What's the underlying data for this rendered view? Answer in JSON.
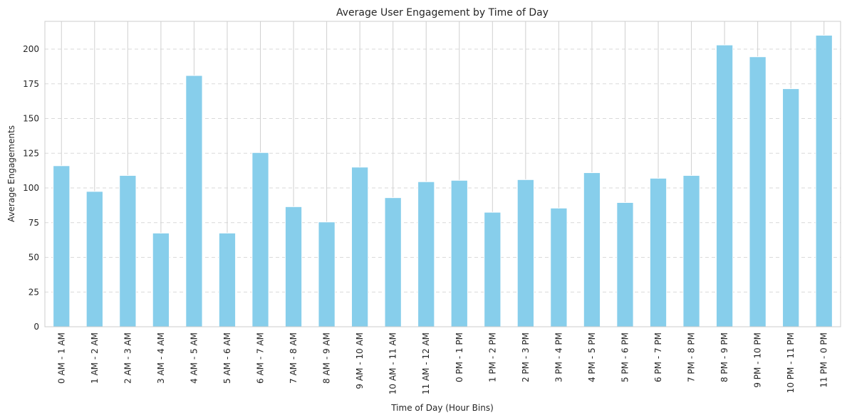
{
  "chart_data": {
    "type": "bar",
    "title": "Average User Engagement by Time of Day",
    "xlabel": "Time of Day (Hour Bins)",
    "ylabel": "Average Engagements",
    "categories": [
      "0 AM - 1 AM",
      "1 AM - 2 AM",
      "2 AM - 3 AM",
      "3 AM - 4 AM",
      "4 AM - 5 AM",
      "5 AM - 6 AM",
      "6 AM - 7 AM",
      "7 AM - 8 AM",
      "8 AM - 9 AM",
      "9 AM - 10 AM",
      "10 AM - 11 AM",
      "11 AM - 12 AM",
      "0 PM - 1 PM",
      "1 PM - 2 PM",
      "2 PM - 3 PM",
      "3 PM - 4 PM",
      "4 PM - 5 PM",
      "5 PM - 6 PM",
      "6 PM - 7 PM",
      "7 PM - 8 PM",
      "8 PM - 9 PM",
      "9 PM - 10 PM",
      "10 PM - 11 PM",
      "11 PM - 0 PM"
    ],
    "values": [
      116,
      97.5,
      109,
      67.5,
      181,
      67.5,
      125.5,
      86.5,
      75.5,
      115,
      93,
      104.5,
      105.5,
      82.5,
      106,
      85.5,
      111,
      89.5,
      107,
      109,
      203,
      194.5,
      171.5,
      210
    ],
    "ylim": [
      0,
      220
    ],
    "yticks": [
      0,
      25,
      50,
      75,
      100,
      125,
      150,
      175,
      200
    ],
    "bar_color": "#87ceeb",
    "grid": true
  }
}
